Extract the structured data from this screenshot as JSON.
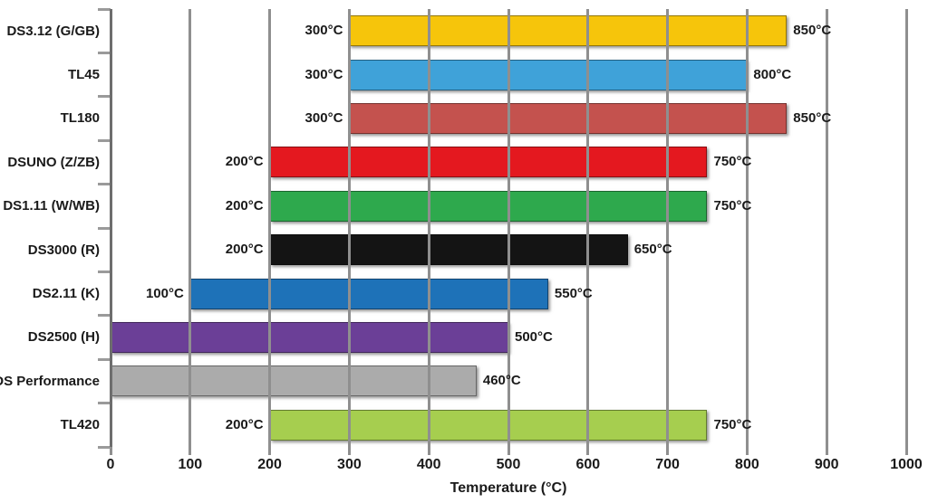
{
  "chart_data": {
    "type": "bar",
    "orientation": "horizontal",
    "title": "",
    "xlabel": "Temperature (°C)",
    "xlim": [
      0,
      1000
    ],
    "x_ticks": [
      "0",
      "100",
      "200",
      "300",
      "400",
      "500",
      "600",
      "700",
      "800",
      "900",
      "1000"
    ],
    "grid": true,
    "gridline_color": "#8f8f8f",
    "text_color": "#1a1a1a",
    "value_suffix": "°C",
    "rows": [
      {
        "label": "DS3.12 (G/GB)",
        "start": 300,
        "end": 850,
        "start_label": "300°C",
        "end_label": "850°C",
        "color": "#F6C50B"
      },
      {
        "label": "TL45",
        "start": 300,
        "end": 800,
        "start_label": "300°C",
        "end_label": "800°C",
        "color": "#3FA2D9"
      },
      {
        "label": "TL180",
        "start": 300,
        "end": 850,
        "start_label": "300°C",
        "end_label": "850°C",
        "color": "#C4524E"
      },
      {
        "label": "DSUNO (Z/ZB)",
        "start": 200,
        "end": 750,
        "start_label": "200°C",
        "end_label": "750°C",
        "color": "#E4181F"
      },
      {
        "label": "DS1.11 (W/WB)",
        "start": 200,
        "end": 750,
        "start_label": "200°C",
        "end_label": "750°C",
        "color": "#2EA94D"
      },
      {
        "label": "DS3000 (R)",
        "start": 200,
        "end": 650,
        "start_label": "200°C",
        "end_label": "650°C",
        "color": "#141414"
      },
      {
        "label": "DS2.11 (K)",
        "start": 100,
        "end": 550,
        "start_label": "100°C",
        "end_label": "550°C",
        "color": "#1E72B8"
      },
      {
        "label": "DS2500 (H)",
        "start": 0,
        "end": 500,
        "start_label": "",
        "end_label": "500°C",
        "color": "#6B3F97"
      },
      {
        "label": "DS Performance",
        "start": 0,
        "end": 460,
        "start_label": "",
        "end_label": "460°C",
        "color": "#ABABAB"
      },
      {
        "label": "TL420",
        "start": 200,
        "end": 750,
        "start_label": "200°C",
        "end_label": "750°C",
        "color": "#A6CE4F"
      }
    ]
  }
}
